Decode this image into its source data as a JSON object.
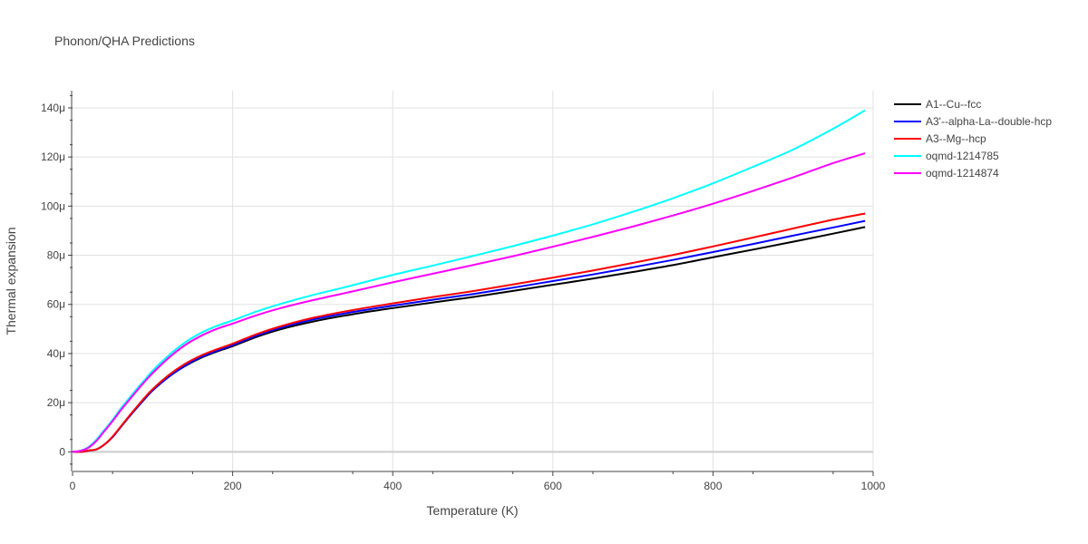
{
  "chart_data": {
    "type": "line",
    "title": "Phonon/QHA Predictions",
    "xlabel": "Temperature (K)",
    "ylabel": "Thermal expansion",
    "xlim": [
      0,
      1000
    ],
    "ylim": [
      -8e-06,
      0.000147
    ],
    "x_ticks": [
      0,
      200,
      400,
      600,
      800,
      1000
    ],
    "x_tick_labels": [
      "0",
      "200",
      "400",
      "600",
      "800",
      "1000"
    ],
    "y_ticks": [
      0,
      2e-05,
      4e-05,
      6e-05,
      8e-05,
      0.0001,
      0.00012,
      0.00014
    ],
    "y_tick_labels": [
      "0",
      "20μ",
      "40μ",
      "60μ",
      "80μ",
      "100μ",
      "120μ",
      "140μ"
    ],
    "grid": true,
    "legend_position": "right",
    "x": [
      0,
      10,
      20,
      30,
      40,
      50,
      60,
      70,
      80,
      90,
      100,
      120,
      140,
      160,
      180,
      200,
      230,
      260,
      300,
      350,
      400,
      450,
      500,
      550,
      600,
      650,
      700,
      750,
      800,
      850,
      900,
      950,
      990
    ],
    "series": [
      {
        "name": "A1--Cu--fcc",
        "color": "#000000",
        "values": [
          0,
          0,
          5e-07,
          1e-06,
          3e-06,
          6e-06,
          1e-05,
          1.4e-05,
          1.78e-05,
          2.15e-05,
          2.5e-05,
          3.05e-05,
          3.48e-05,
          3.82e-05,
          4.08e-05,
          4.3e-05,
          4.68e-05,
          4.99e-05,
          5.3e-05,
          5.6e-05,
          5.85e-05,
          6.08e-05,
          6.3e-05,
          6.55e-05,
          6.8e-05,
          7.05e-05,
          7.32e-05,
          7.6e-05,
          7.92e-05,
          8.23e-05,
          8.55e-05,
          8.88e-05,
          9.15e-05
        ]
      },
      {
        "name": "A3'--alpha-La--double-hcp",
        "color": "#0000ff",
        "values": [
          0,
          0,
          5e-07,
          1e-06,
          3e-06,
          6e-06,
          1e-05,
          1.4e-05,
          1.78e-05,
          2.15e-05,
          2.5e-05,
          3.05e-05,
          3.5e-05,
          3.85e-05,
          4.11e-05,
          4.34e-05,
          4.73e-05,
          5.05e-05,
          5.38e-05,
          5.69e-05,
          5.95e-05,
          6.19e-05,
          6.42e-05,
          6.68e-05,
          6.95e-05,
          7.22e-05,
          7.51e-05,
          7.81e-05,
          8.13e-05,
          8.46e-05,
          8.8e-05,
          9.13e-05,
          9.4e-05
        ]
      },
      {
        "name": "A3--Mg--hcp",
        "color": "#ff0000",
        "values": [
          0,
          0,
          5e-07,
          1e-06,
          3e-06,
          6.2e-06,
          1.02e-05,
          1.43e-05,
          1.82e-05,
          2.2e-05,
          2.55e-05,
          3.12e-05,
          3.57e-05,
          3.91e-05,
          4.17e-05,
          4.4e-05,
          4.79e-05,
          5.11e-05,
          5.45e-05,
          5.77e-05,
          6.04e-05,
          6.3e-05,
          6.54e-05,
          6.81e-05,
          7.09e-05,
          7.38e-05,
          7.69e-05,
          8.01e-05,
          8.36e-05,
          8.72e-05,
          9.09e-05,
          9.45e-05,
          9.7e-05
        ]
      },
      {
        "name": "oqmd-1214785",
        "color": "#00ffff",
        "values": [
          0,
          5e-07,
          2e-06,
          5e-06,
          9e-06,
          1.3e-05,
          1.75e-05,
          2.15e-05,
          2.55e-05,
          2.92e-05,
          3.3e-05,
          3.92e-05,
          4.44e-05,
          4.83e-05,
          5.12e-05,
          5.35e-05,
          5.71e-05,
          6.02e-05,
          6.38e-05,
          6.78e-05,
          7.2e-05,
          7.58e-05,
          7.97e-05,
          8.37e-05,
          8.8e-05,
          9.26e-05,
          9.77e-05,
          0.0001032,
          0.0001093,
          0.000116,
          0.000123,
          0.0001315,
          0.000139
        ]
      },
      {
        "name": "oqmd-1214874",
        "color": "#ff00ff",
        "values": [
          0,
          4e-07,
          1.7e-06,
          4.5e-06,
          8.5e-06,
          1.25e-05,
          1.68e-05,
          2.08e-05,
          2.47e-05,
          2.85e-05,
          3.2e-05,
          3.82e-05,
          4.33e-05,
          4.71e-05,
          5e-05,
          5.22e-05,
          5.56e-05,
          5.85e-05,
          6.17e-05,
          6.53e-05,
          6.9e-05,
          7.25e-05,
          7.6e-05,
          7.96e-05,
          8.35e-05,
          8.75e-05,
          9.17e-05,
          9.62e-05,
          0.000101,
          0.0001062,
          0.0001117,
          0.0001175,
          0.0001215
        ]
      }
    ]
  }
}
